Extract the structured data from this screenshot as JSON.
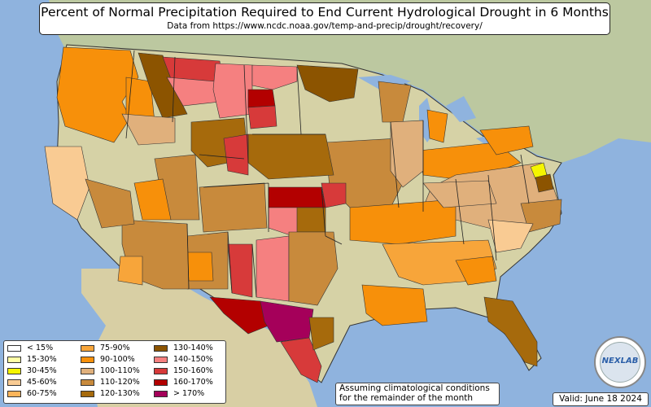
{
  "title": "Percent of Normal Precipitation Required to End Current Hydrological Drought in 6 Months",
  "subtitle": "Data from https://www.ncdc.noaa.gov/temp-and-precip/drought/recovery/",
  "legend": [
    {
      "label": "< 15%",
      "color": "#ffffff"
    },
    {
      "label": "15-30%",
      "color": "#ffffa6"
    },
    {
      "label": "30-45%",
      "color": "#f5f500"
    },
    {
      "label": "45-60%",
      "color": "#f9cb93"
    },
    {
      "label": "60-75%",
      "color": "#fcb45a"
    },
    {
      "label": "75-90%",
      "color": "#f7a53a"
    },
    {
      "label": "90-100%",
      "color": "#f7900a"
    },
    {
      "label": "100-110%",
      "color": "#e0b07c"
    },
    {
      "label": "110-120%",
      "color": "#c88a3c"
    },
    {
      "label": "120-130%",
      "color": "#a66a0c"
    },
    {
      "label": "130-140%",
      "color": "#8c5400"
    },
    {
      "label": "140-150%",
      "color": "#f58080"
    },
    {
      "label": "150-160%",
      "color": "#d73a3a"
    },
    {
      "label": "160-170%",
      "color": "#b30000"
    },
    {
      "label": "> 170%",
      "color": "#a5005a"
    }
  ],
  "note": {
    "line1": "Assuming climatological conditions",
    "line2": "for the remainder of the month"
  },
  "valid": "Valid: June 18 2024",
  "logo_text": "NEXLAB",
  "map": {
    "ocean": "#8fb3de",
    "land": "#d6d2a6",
    "canada": "#bcc8a0",
    "mexico": "#d8cfa4"
  }
}
